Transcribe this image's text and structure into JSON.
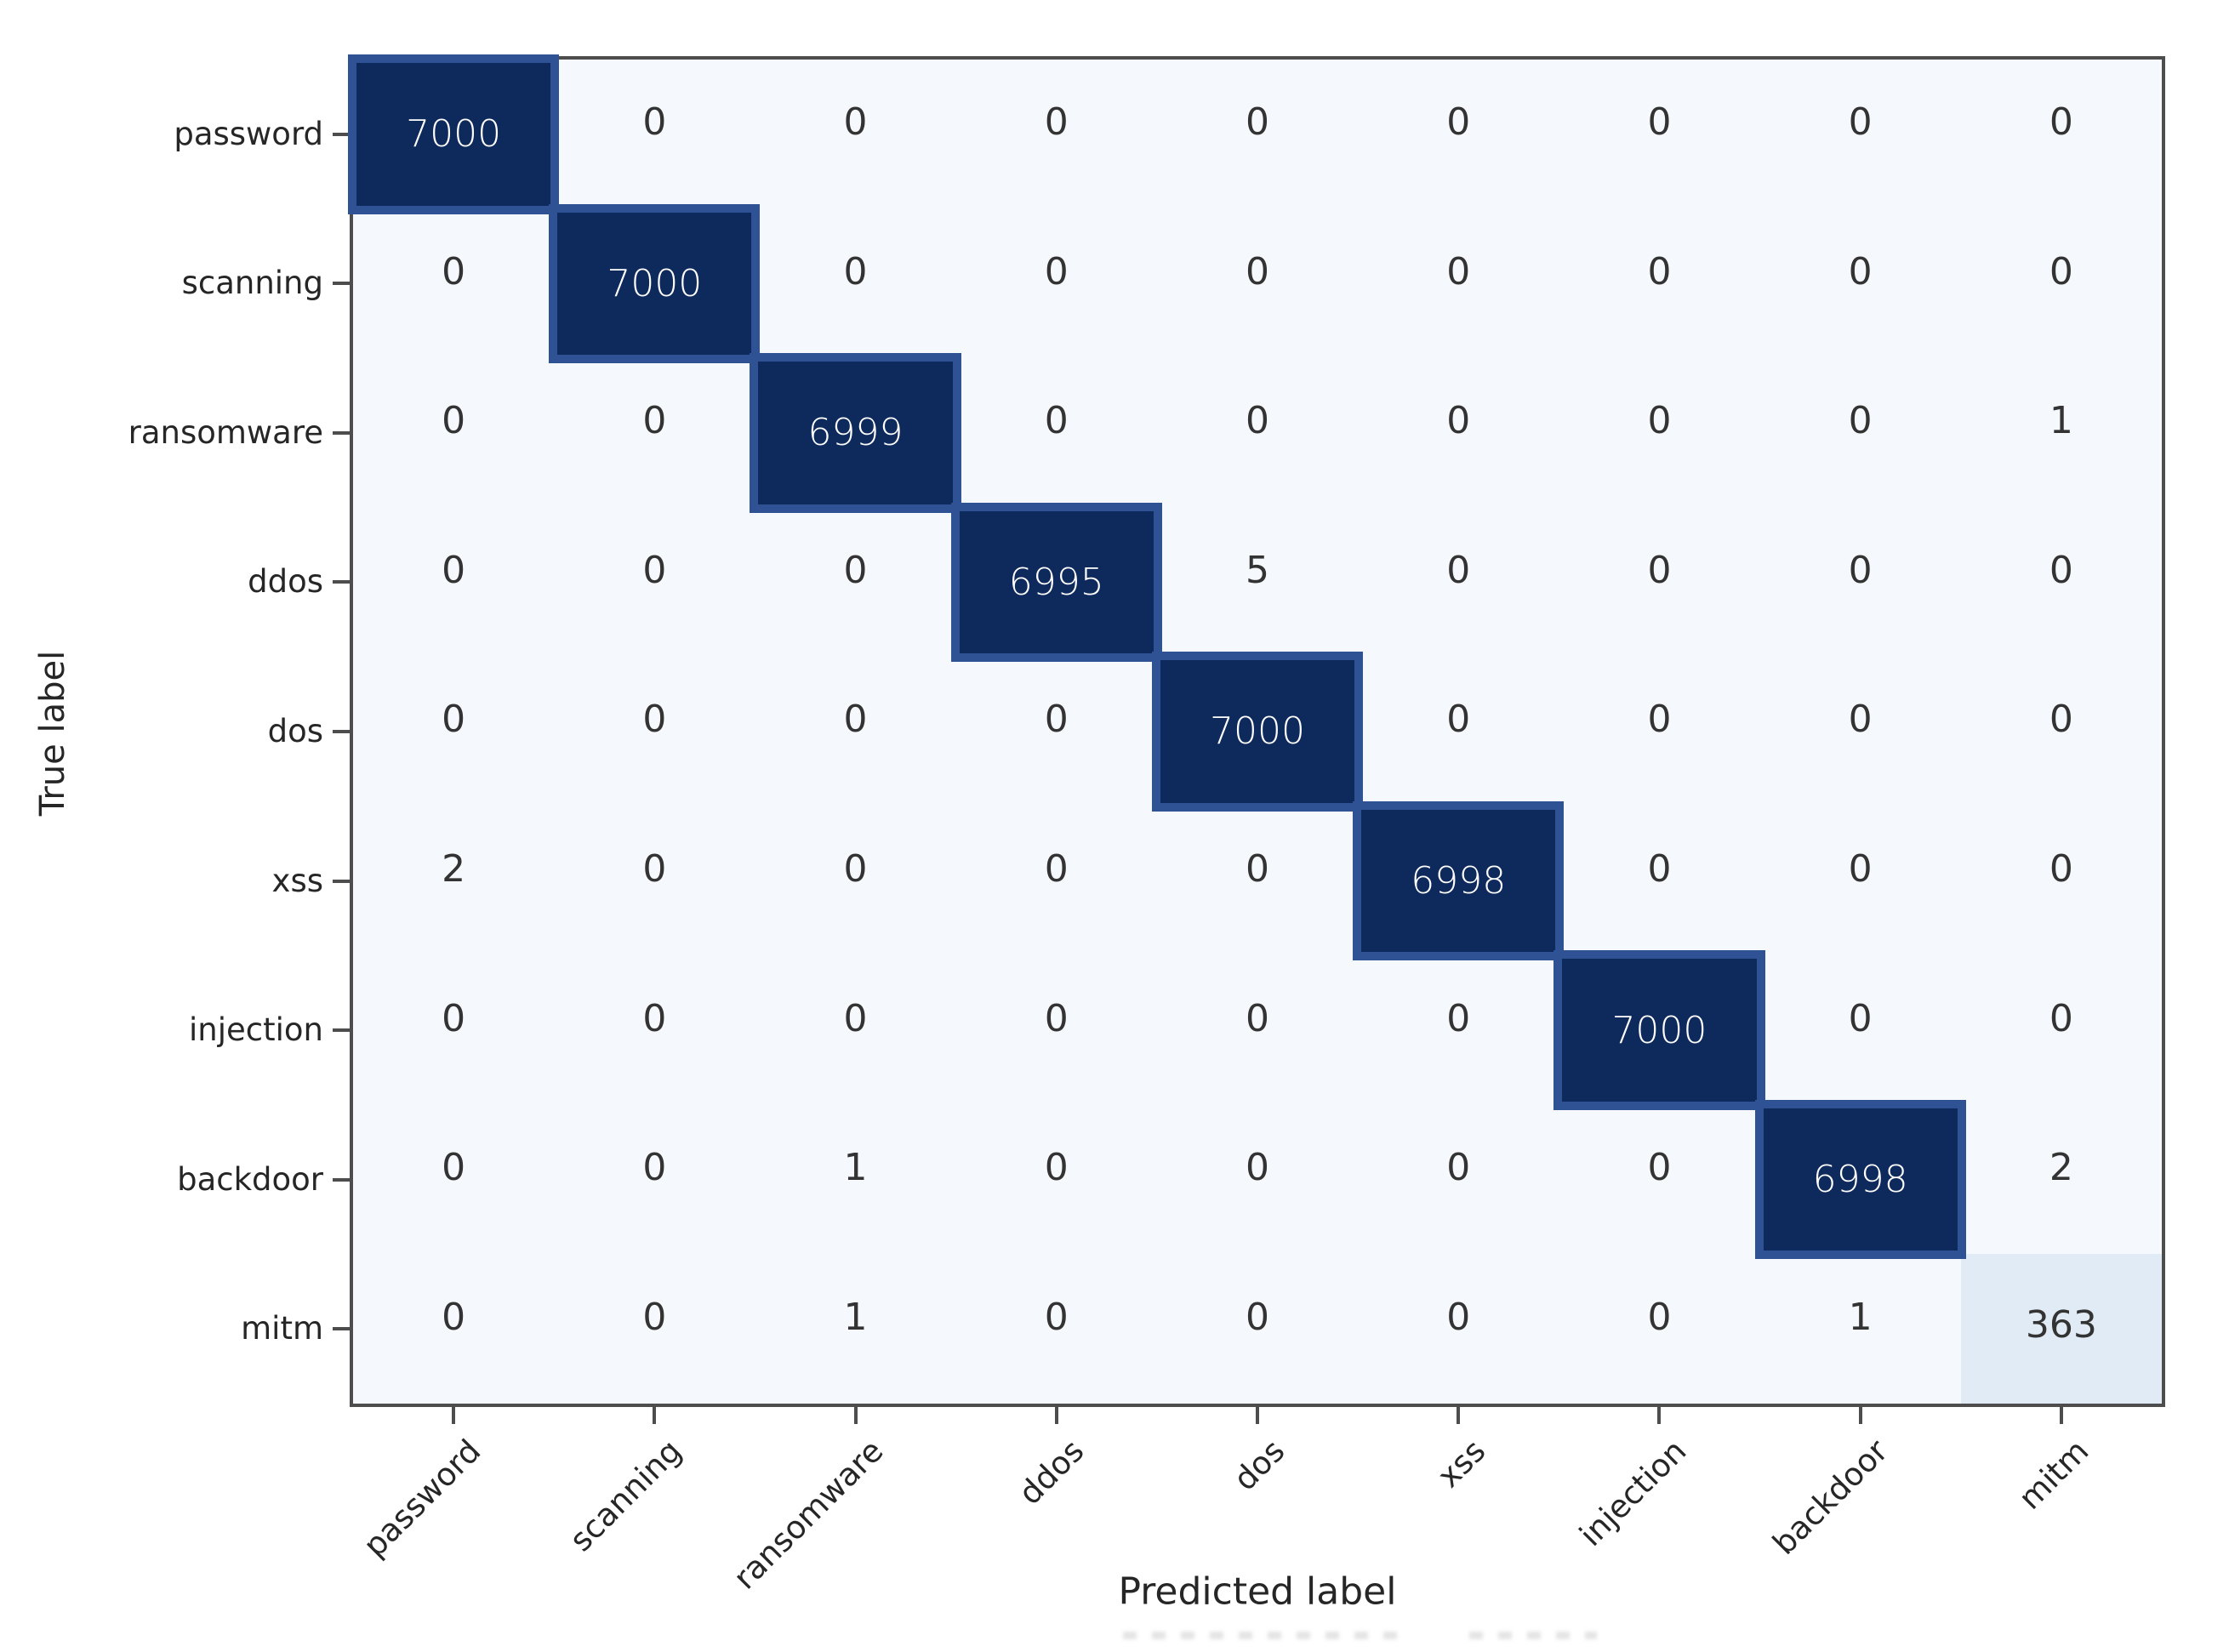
{
  "chart_data": {
    "type": "heatmap",
    "title": "",
    "xlabel": "Predicted label",
    "ylabel": "True label",
    "x_categories": [
      "password",
      "scanning",
      "ransomware",
      "ddos",
      "dos",
      "xss",
      "injection",
      "backdoor",
      "mitm"
    ],
    "y_categories": [
      "password",
      "scanning",
      "ransomware",
      "ddos",
      "dos",
      "xss",
      "injection",
      "backdoor",
      "mitm"
    ],
    "matrix": [
      [
        7000,
        0,
        0,
        0,
        0,
        0,
        0,
        0,
        0
      ],
      [
        0,
        7000,
        0,
        0,
        0,
        0,
        0,
        0,
        0
      ],
      [
        0,
        0,
        6999,
        0,
        0,
        0,
        0,
        0,
        1
      ],
      [
        0,
        0,
        0,
        6995,
        5,
        0,
        0,
        0,
        0
      ],
      [
        0,
        0,
        0,
        0,
        7000,
        0,
        0,
        0,
        0
      ],
      [
        2,
        0,
        0,
        0,
        0,
        6998,
        0,
        0,
        0
      ],
      [
        0,
        0,
        0,
        0,
        0,
        0,
        7000,
        0,
        0
      ],
      [
        0,
        0,
        1,
        0,
        0,
        0,
        0,
        6998,
        2
      ],
      [
        0,
        0,
        1,
        0,
        0,
        0,
        0,
        1,
        363
      ]
    ],
    "legend": "none",
    "grid": false,
    "colors": {
      "diagonal_fill": "#0e2a5c",
      "diagonal_border": "#2e5293",
      "background_cell": "#f5f8fc",
      "low_diagonal_fill": "#e1ebf5",
      "frame": "#4d4d4d",
      "cell_text_dark": "#333333",
      "cell_text_light": "#ffffff"
    }
  }
}
